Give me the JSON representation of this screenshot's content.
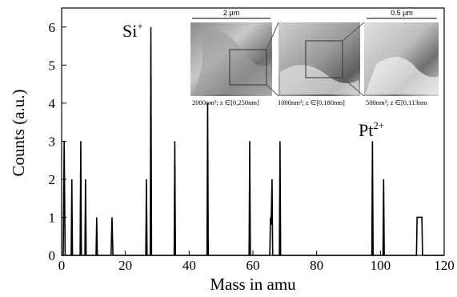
{
  "chart_data": {
    "type": "line",
    "xlabel": "Mass in amu",
    "ylabel": "Counts (a.u.)",
    "x": [
      0,
      0.5,
      0.8,
      1.1,
      3.0,
      3.2,
      3.4,
      5.8,
      6,
      6.2,
      7.3,
      7.5,
      7.7,
      10.8,
      11,
      11.2,
      15.5,
      15.8,
      16.1,
      26.4,
      26.6,
      26.8,
      27.8,
      28,
      28.2,
      35.3,
      35.5,
      35.7,
      45.6,
      45.8,
      46,
      58.8,
      59,
      59.2,
      65.3,
      65.5,
      65.7,
      66,
      66.2,
      68.3,
      68.5,
      68.7,
      97.3,
      97.5,
      97.7,
      100.8,
      101,
      101.2,
      111.3,
      111.5,
      113,
      113.2,
      120
    ],
    "values": [
      0,
      0,
      3,
      0,
      0,
      2,
      0,
      0,
      3,
      0,
      0,
      2,
      0,
      0,
      1,
      0,
      0,
      1,
      0,
      0,
      2,
      0,
      0,
      6,
      0,
      0,
      3,
      0,
      0,
      4,
      0,
      0,
      3,
      0,
      0,
      1,
      0.8,
      2,
      0,
      0,
      3,
      0,
      0,
      3,
      0,
      0,
      2,
      0,
      0,
      1,
      1,
      0,
      0
    ],
    "color": "#000000",
    "xlim": [
      0,
      120
    ],
    "xticks": [
      0,
      20,
      40,
      60,
      80,
      100,
      120
    ],
    "ylim": [
      0,
      6.5
    ],
    "yticks": [
      0,
      1,
      2,
      3,
      4,
      5,
      6
    ],
    "annotations": [
      {
        "text": "Si",
        "sup": "+"
      },
      {
        "text": "Pt",
        "sup": "2+"
      }
    ],
    "insets": [
      {
        "scale": "2 μm",
        "caption": "2000nm²; z ∈[0,250nm]"
      },
      {
        "caption": "1000nm²; z ∈[0,180nm]"
      },
      {
        "scale": "0.5 μm",
        "caption": "500nm²; z ∈[0,113nm"
      }
    ]
  }
}
